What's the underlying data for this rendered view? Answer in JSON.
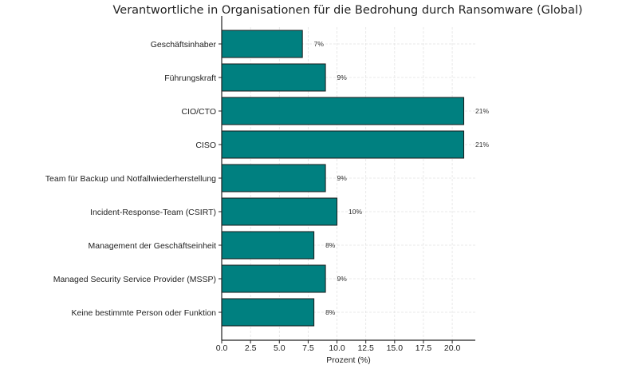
{
  "chart_data": {
    "type": "bar",
    "orientation": "horizontal",
    "title": "Verantwortliche in Organisationen für die Bedrohung durch Ransomware (Global)",
    "xlabel": "Prozent (%)",
    "ylabel": "",
    "categories": [
      "Geschäftsinhaber",
      "Führungskraft",
      "CIO/CTO",
      "CISO",
      "Team für Backup und Notfallwiederherstellung",
      "Incident-Response-Team (CSIRT)",
      "Management der Geschäftseinheit",
      "Managed Security Service Provider (MSSP)",
      "Keine bestimmte Person oder Funktion"
    ],
    "values": [
      7,
      9,
      21,
      21,
      9,
      10,
      8,
      9,
      8
    ],
    "data_labels": [
      "7%",
      "9%",
      "21%",
      "21%",
      "9%",
      "10%",
      "8%",
      "9%",
      "8%"
    ],
    "xlim": [
      0,
      22
    ],
    "xticks": [
      "0.0",
      "2.5",
      "5.0",
      "7.5",
      "10.0",
      "12.5",
      "15.0",
      "17.5",
      "20.0"
    ],
    "grid": true,
    "bar_color": "#008080",
    "edge_color": "#1a1a1a"
  }
}
